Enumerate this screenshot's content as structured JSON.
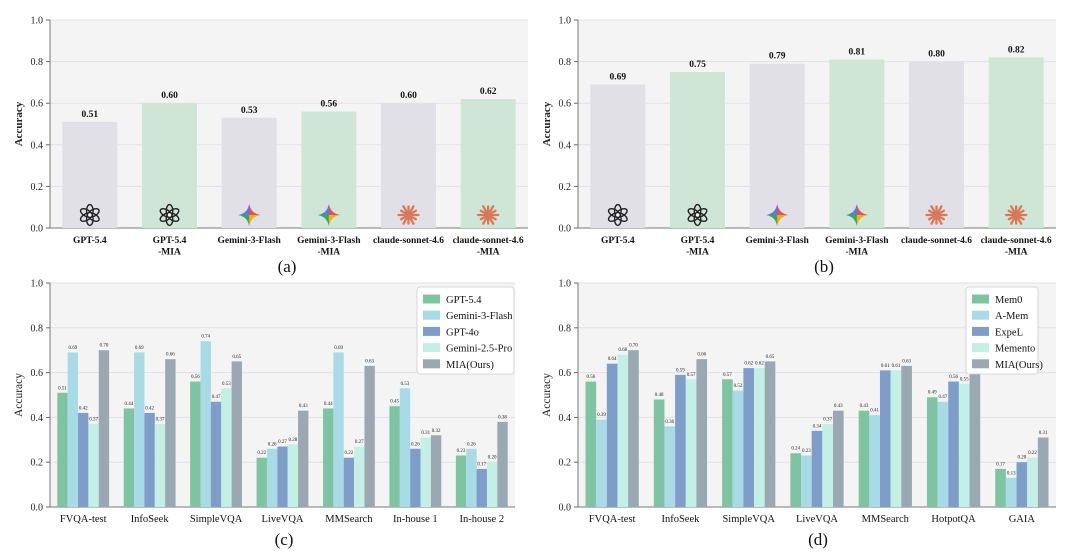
{
  "chart_data": [
    {
      "type": "bar",
      "caption": "(a)",
      "categories": [
        "GPT-5.4",
        "GPT-5.4\n-MIA",
        "Gemini-3-Flash",
        "Gemini-3-Flash\n-MIA",
        "claude-sonnet-4.6",
        "claude-sonnet-4.6\n-MIA"
      ],
      "values": [
        0.51,
        0.6,
        0.53,
        0.56,
        0.6,
        0.62
      ],
      "data_labels": [
        "0.51",
        "0.60",
        "0.53",
        "0.56",
        "0.60",
        "0.62"
      ],
      "bar_colors": [
        "#e0e0e6",
        "#cfe6d7",
        "#e0e0e6",
        "#cfe6d7",
        "#e0e0e6",
        "#cfe6d7"
      ],
      "icons": [
        "openai-logo",
        "openai-logo",
        "gemini-logo",
        "gemini-logo",
        "claude-logo",
        "claude-logo"
      ],
      "ylabel": "Accuracy",
      "ylim": [
        0,
        1.0
      ],
      "yticks": [
        "0.0",
        "0.2",
        "0.4",
        "0.6",
        "0.8",
        "1.0"
      ],
      "grid": true
    },
    {
      "type": "bar",
      "caption": "(b)",
      "categories": [
        "GPT-5.4",
        "GPT-5.4\n-MIA",
        "Gemini-3-Flash",
        "Gemini-3-Flash\n-MIA",
        "claude-sonnet-4.6",
        "claude-sonnet-4.6\n-MIA"
      ],
      "values": [
        0.69,
        0.75,
        0.79,
        0.81,
        0.8,
        0.82
      ],
      "data_labels": [
        "0.69",
        "0.75",
        "0.79",
        "0.81",
        "0.80",
        "0.82"
      ],
      "bar_colors": [
        "#e0e0e6",
        "#cfe6d7",
        "#e0e0e6",
        "#cfe6d7",
        "#e0e0e6",
        "#cfe6d7"
      ],
      "icons": [
        "openai-logo",
        "openai-logo",
        "gemini-logo",
        "gemini-logo",
        "claude-logo",
        "claude-logo"
      ],
      "ylabel": "Accuracy",
      "ylim": [
        0,
        1.0
      ],
      "yticks": [
        "0.0",
        "0.2",
        "0.4",
        "0.6",
        "0.8",
        "1.0"
      ],
      "grid": true
    },
    {
      "type": "bar",
      "caption": "(c)",
      "categories": [
        "FVQA-test",
        "InfoSeek",
        "SimpleVQA",
        "LiveVQA",
        "MMSearch",
        "In-house 1",
        "In-house 2"
      ],
      "series": [
        {
          "name": "GPT-5.4",
          "color": "#7ec4a2",
          "values": [
            0.51,
            0.44,
            0.56,
            0.22,
            0.44,
            0.45,
            0.23
          ]
        },
        {
          "name": "Gemini-3-Flash",
          "color": "#a8dbe6",
          "values": [
            0.69,
            0.69,
            0.74,
            0.26,
            0.69,
            0.53,
            0.26
          ]
        },
        {
          "name": "GPT-4o",
          "color": "#7e9ec9",
          "values": [
            0.42,
            0.42,
            0.47,
            0.27,
            0.22,
            0.26,
            0.17
          ]
        },
        {
          "name": "Gemini-2.5-Pro",
          "color": "#c3efe4",
          "values": [
            0.37,
            0.37,
            0.53,
            0.28,
            0.27,
            0.31,
            0.2
          ]
        },
        {
          "name": "MIA(Ours)",
          "color": "#9aa8b2",
          "values": [
            0.7,
            0.66,
            0.65,
            0.43,
            0.63,
            0.32,
            0.38
          ]
        }
      ],
      "ylabel": "Accuracy",
      "ylim": [
        0,
        1.0
      ],
      "yticks": [
        "0.0",
        "0.2",
        "0.4",
        "0.6",
        "0.8",
        "1.0"
      ],
      "legend": "top-right",
      "grid": true
    },
    {
      "type": "bar",
      "caption": "(d)",
      "categories": [
        "FVQA-test",
        "InfoSeek",
        "SimpleVQA",
        "LiveVQA",
        "MMSearch",
        "HotpotQA",
        "GAIA"
      ],
      "series": [
        {
          "name": "Mem0",
          "color": "#7ec4a2",
          "values": [
            0.56,
            0.48,
            0.57,
            0.24,
            0.43,
            0.49,
            0.17
          ]
        },
        {
          "name": "A-Mem",
          "color": "#a8dbe6",
          "values": [
            0.39,
            0.36,
            0.52,
            0.23,
            0.41,
            0.47,
            0.13
          ]
        },
        {
          "name": "ExpeL",
          "color": "#7e9ec9",
          "values": [
            0.64,
            0.59,
            0.62,
            0.34,
            0.61,
            0.56,
            0.2
          ]
        },
        {
          "name": "Memento",
          "color": "#c3efe4",
          "values": [
            0.68,
            0.57,
            0.62,
            0.37,
            0.61,
            0.55,
            0.22
          ]
        },
        {
          "name": "MIA(Ours)",
          "color": "#9aa8b2",
          "values": [
            0.7,
            0.66,
            0.65,
            0.43,
            0.63,
            0.64,
            0.31
          ]
        }
      ],
      "ylabel": "Accuracy",
      "ylim": [
        0,
        1.0
      ],
      "yticks": [
        "0.0",
        "0.2",
        "0.4",
        "0.6",
        "0.8",
        "1.0"
      ],
      "legend": "top-right",
      "grid": true
    }
  ]
}
